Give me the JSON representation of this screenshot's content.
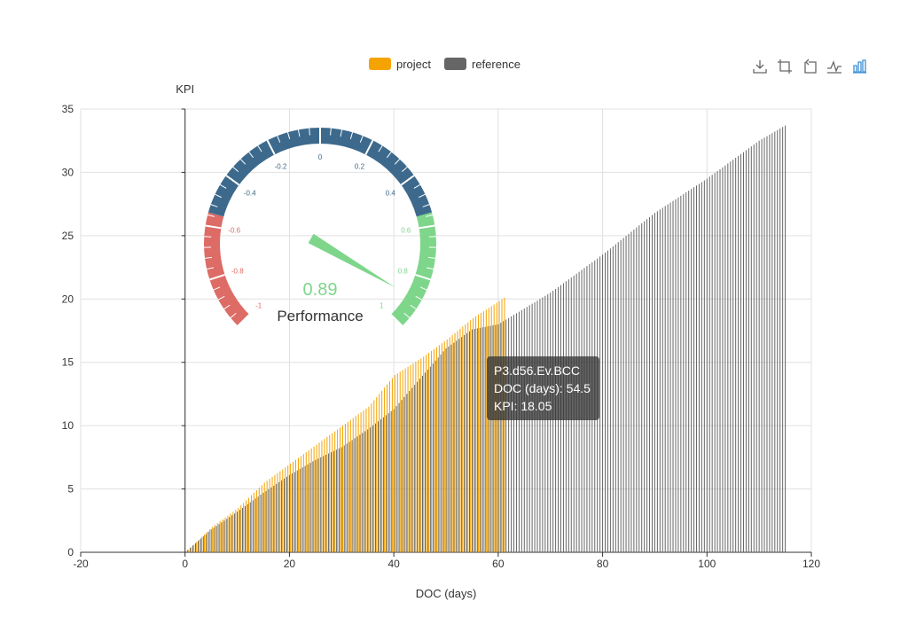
{
  "legend": {
    "items": [
      {
        "label": "project",
        "color": "#f5a300"
      },
      {
        "label": "reference",
        "color": "#666666"
      }
    ]
  },
  "toolbox": {
    "icons": [
      "download-icon",
      "zoom-icon",
      "zoom-reset-icon",
      "line-chart-icon",
      "bar-chart-icon"
    ],
    "active": "bar-chart-icon",
    "active_color": "#3d8fd6",
    "icon_color": "#666666"
  },
  "chart_data": [
    {
      "type": "bar",
      "title": "",
      "xlabel": "DOC (days)",
      "ylabel": "KPI",
      "xlim": [
        -20,
        120
      ],
      "ylim": [
        0,
        35
      ],
      "x_ticks": [
        "-20",
        "0",
        "20",
        "40",
        "60",
        "80",
        "100",
        "120"
      ],
      "y_ticks": [
        "0",
        "5",
        "10",
        "15",
        "20",
        "25",
        "30",
        "35"
      ],
      "grid": true,
      "legend_position": "top-center",
      "bar_spacing_days": 0.5,
      "series": [
        {
          "name": "project",
          "color": "#f5a300",
          "points": [
            [
              0,
              0
            ],
            [
              5,
              2.0
            ],
            [
              10,
              3.5
            ],
            [
              15,
              5.5
            ],
            [
              20,
              7.0
            ],
            [
              25,
              8.5
            ],
            [
              30,
              10.0
            ],
            [
              35,
              11.5
            ],
            [
              40,
              14.0
            ],
            [
              45,
              15.3
            ],
            [
              50,
              16.8
            ],
            [
              55,
              18.5
            ],
            [
              61,
              20.1
            ]
          ]
        },
        {
          "name": "reference",
          "color": "#666666",
          "points": [
            [
              0,
              0
            ],
            [
              5,
              1.8
            ],
            [
              10,
              3.2
            ],
            [
              15,
              4.7
            ],
            [
              20,
              6.1
            ],
            [
              25,
              7.3
            ],
            [
              30,
              8.3
            ],
            [
              35,
              9.7
            ],
            [
              40,
              11.3
            ],
            [
              45,
              13.7
            ],
            [
              50,
              16.1
            ],
            [
              55,
              17.6
            ],
            [
              60,
              18.0
            ],
            [
              70,
              20.5
            ],
            [
              80,
              23.5
            ],
            [
              90,
              26.8
            ],
            [
              100,
              29.5
            ],
            [
              110,
              32.5
            ],
            [
              115,
              33.7
            ]
          ]
        }
      ],
      "tooltip": {
        "title": "P3.d56.Ev.BCC",
        "line1": "DOC (days): 54.5",
        "line2": "KPI: 18.05"
      }
    },
    {
      "type": "gauge",
      "title": "Performance",
      "value": 0.89,
      "value_label": "0.89",
      "min": -1,
      "max": 1,
      "tick_labels": [
        "-1",
        "-0.8",
        "-0.6",
        "-0.4",
        "-0.2",
        "0",
        "0.2",
        "0.4",
        "0.6",
        "0.8",
        "1"
      ],
      "bands": [
        {
          "to": -0.55,
          "color": "#dd6b66"
        },
        {
          "to": 0.55,
          "color": "#3d6a8c"
        },
        {
          "to": 1.0,
          "color": "#7ed68b"
        }
      ],
      "value_color": "#7ed68b"
    }
  ]
}
